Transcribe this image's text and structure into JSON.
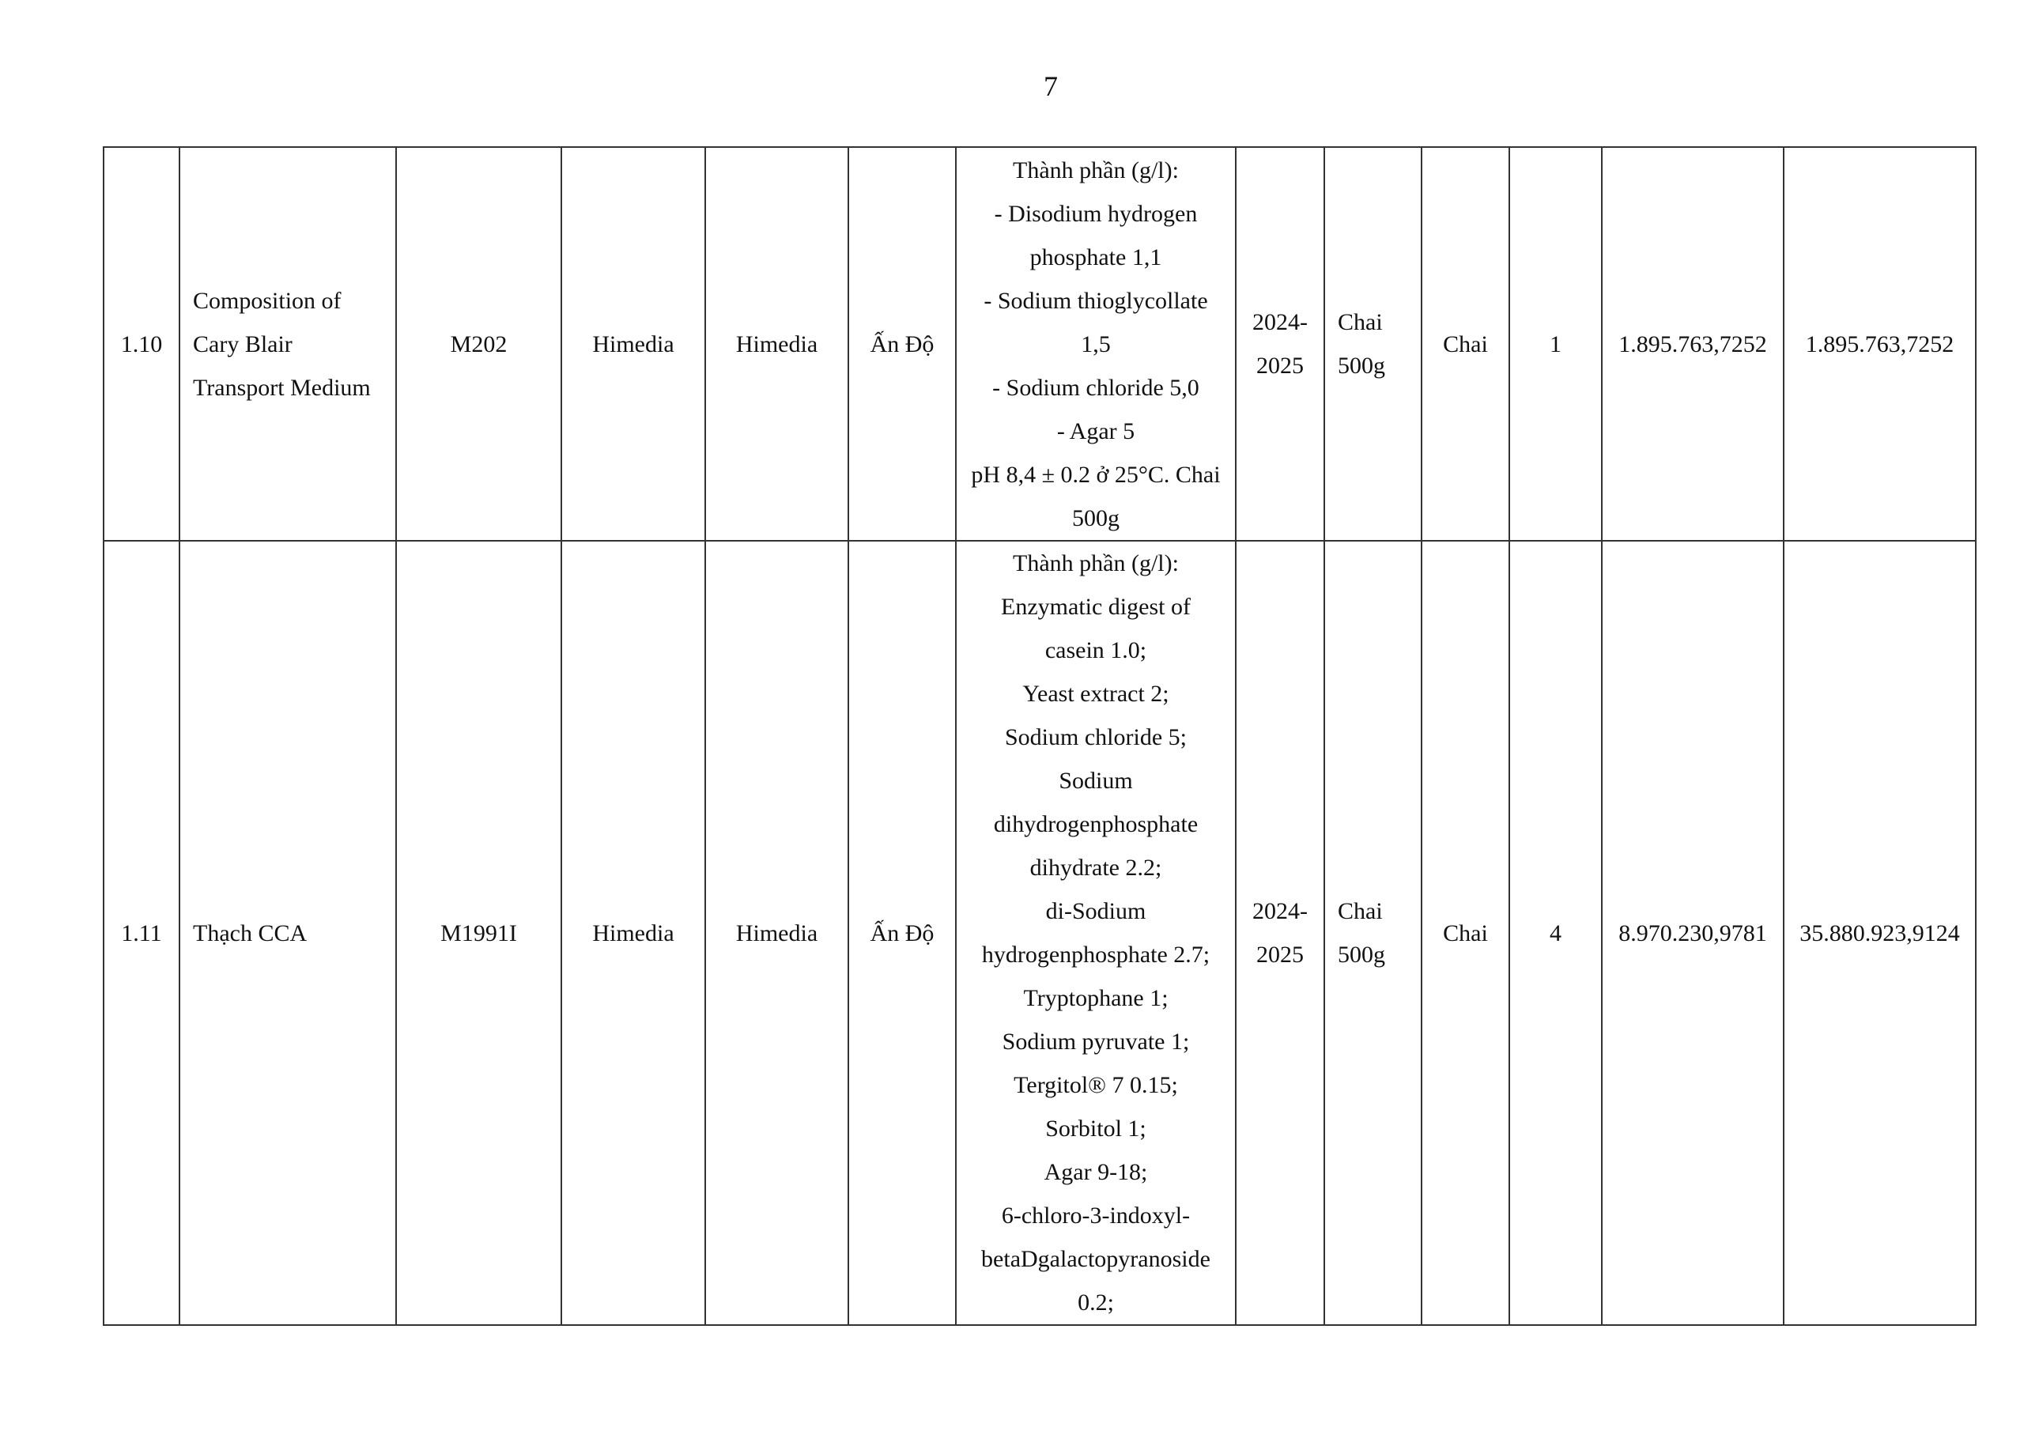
{
  "page_number": "7",
  "rows": [
    {
      "stt": "1.10",
      "name_lines": [
        "Composition of",
        "Cary Blair",
        "Transport Medium"
      ],
      "code": "M202",
      "brand": "Himedia",
      "manufacturer": "Himedia",
      "origin": "Ấn Độ",
      "spec_lines": [
        "Thành phần (g/l):",
        "- Disodium hydrogen",
        "phosphate 1,1",
        "- Sodium thioglycollate",
        "1,5",
        "- Sodium chloride 5,0",
        "- Agar 5",
        "pH 8,4 ± 0.2 ở 25°C. Chai",
        "500g"
      ],
      "year_lines": [
        "2024-",
        "2025"
      ],
      "pack_lines": [
        "Chai",
        "500g"
      ],
      "unit": "Chai",
      "quantity": "1",
      "unit_price": "1.895.763,7252",
      "total": "1.895.763,7252"
    },
    {
      "stt": "1.11",
      "name_lines": [
        "Thạch CCA"
      ],
      "code": "M1991I",
      "brand": "Himedia",
      "manufacturer": "Himedia",
      "origin": "Ấn Độ",
      "spec_lines": [
        "Thành phần (g/l):",
        "Enzymatic digest of",
        "casein 1.0;",
        "Yeast extract 2;",
        "Sodium chloride 5;",
        "Sodium",
        "dihydrogenphosphate",
        "dihydrate 2.2;",
        "di-Sodium",
        "hydrogenphosphate 2.7;",
        "Tryptophane 1;",
        "Sodium pyruvate 1;",
        "Tergitol® 7  0.15;",
        "Sorbitol 1;",
        "Agar 9-18;",
        "6-chloro-3-indoxyl-",
        "betaDgalactopyranoside",
        "0.2;"
      ],
      "year_lines": [
        "2024-",
        "2025"
      ],
      "pack_lines": [
        "Chai",
        "500g"
      ],
      "unit": "Chai",
      "quantity": "4",
      "unit_price": "8.970.230,9781",
      "total": "35.880.923,9124"
    }
  ]
}
